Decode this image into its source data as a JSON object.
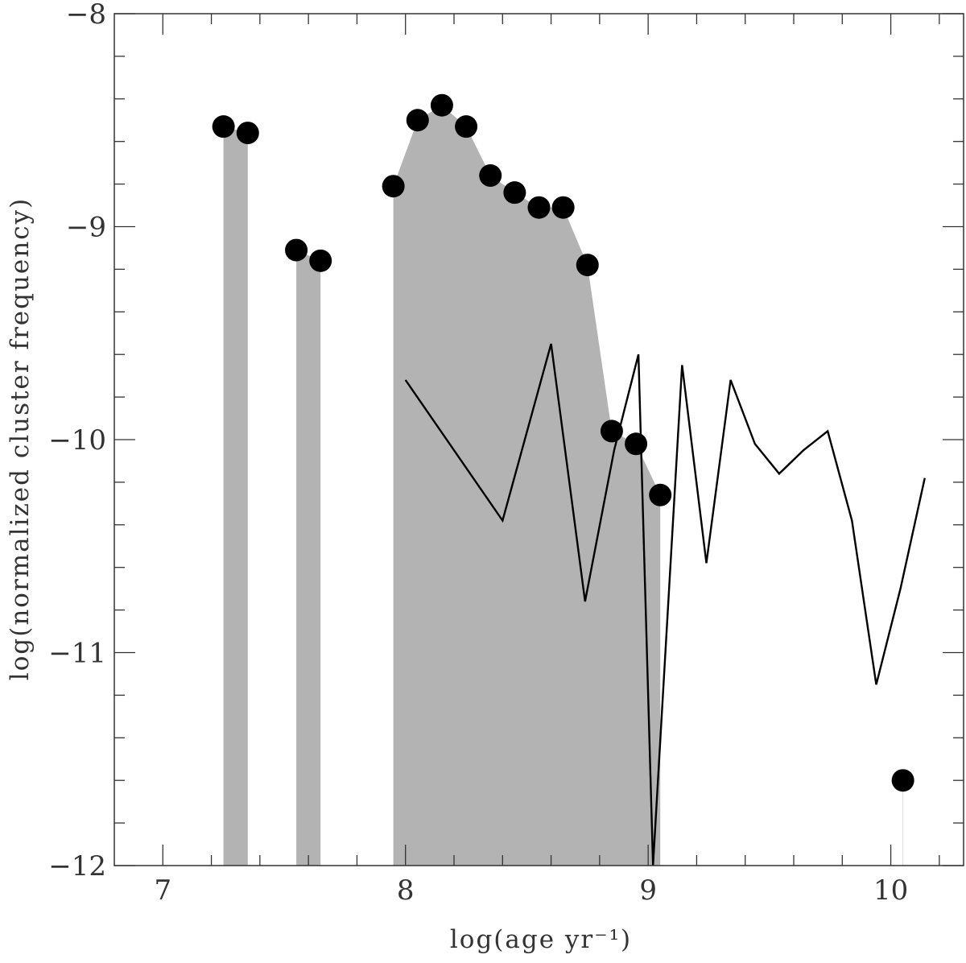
{
  "chart_data": {
    "type": "scatter",
    "title": "",
    "xlabel": "log(age yr⁻¹)",
    "ylabel": "log(normalized cluster frequency)",
    "xlim": [
      6.8,
      10.3
    ],
    "ylim": [
      -12,
      -8
    ],
    "x_ticks": [
      7,
      8,
      9,
      10
    ],
    "x_tick_labels": [
      "7",
      "8",
      "9",
      "10"
    ],
    "y_ticks": [
      -8,
      -9,
      -10,
      -11,
      -12
    ],
    "y_tick_labels": [
      "−8",
      "−9",
      "−10",
      "−11",
      "−12"
    ],
    "grid": false,
    "legend": "none",
    "series": [
      {
        "kind": "points",
        "color": "#000000",
        "x": [
          7.25,
          7.35,
          7.55,
          7.65,
          7.95,
          8.05,
          8.15,
          8.25,
          8.35,
          8.45,
          8.55,
          8.65,
          8.75,
          8.85,
          8.95,
          9.05,
          10.05
        ],
        "y": [
          -8.53,
          -8.56,
          -9.11,
          -9.16,
          -8.81,
          -8.5,
          -8.43,
          -8.53,
          -8.76,
          -8.84,
          -8.91,
          -8.91,
          -9.18,
          -9.96,
          -10.02,
          -10.26,
          -11.6
        ]
      },
      {
        "kind": "shaded-area",
        "color": "#b3b3b3",
        "x": [
          7.25,
          7.35,
          7.55,
          7.65,
          7.95,
          8.05,
          8.15,
          8.25,
          8.35,
          8.45,
          8.55,
          8.65,
          8.75,
          8.85,
          8.95,
          9.05,
          10.05
        ],
        "y": [
          -8.53,
          -8.56,
          -9.11,
          -9.16,
          -8.81,
          -8.5,
          -8.43,
          -8.53,
          -8.76,
          -8.84,
          -8.91,
          -8.91,
          -9.18,
          -9.96,
          -10.02,
          -10.26,
          -11.6
        ]
      },
      {
        "kind": "line",
        "color": "#000000",
        "x": [
          8.0,
          8.4,
          8.6,
          8.74,
          8.86,
          8.96,
          9.02,
          9.14,
          9.24,
          9.34,
          9.44,
          9.54,
          9.64,
          9.74,
          9.84,
          9.94,
          10.04,
          10.14
        ],
        "y": [
          -9.72,
          -10.38,
          -9.55,
          -10.76,
          -10.05,
          -9.6,
          -12,
          -9.65,
          -10.58,
          -9.72,
          -10.02,
          -10.16,
          -10.05,
          -9.96,
          -10.38,
          -11.15,
          -10.7,
          -10.18
        ]
      }
    ]
  }
}
